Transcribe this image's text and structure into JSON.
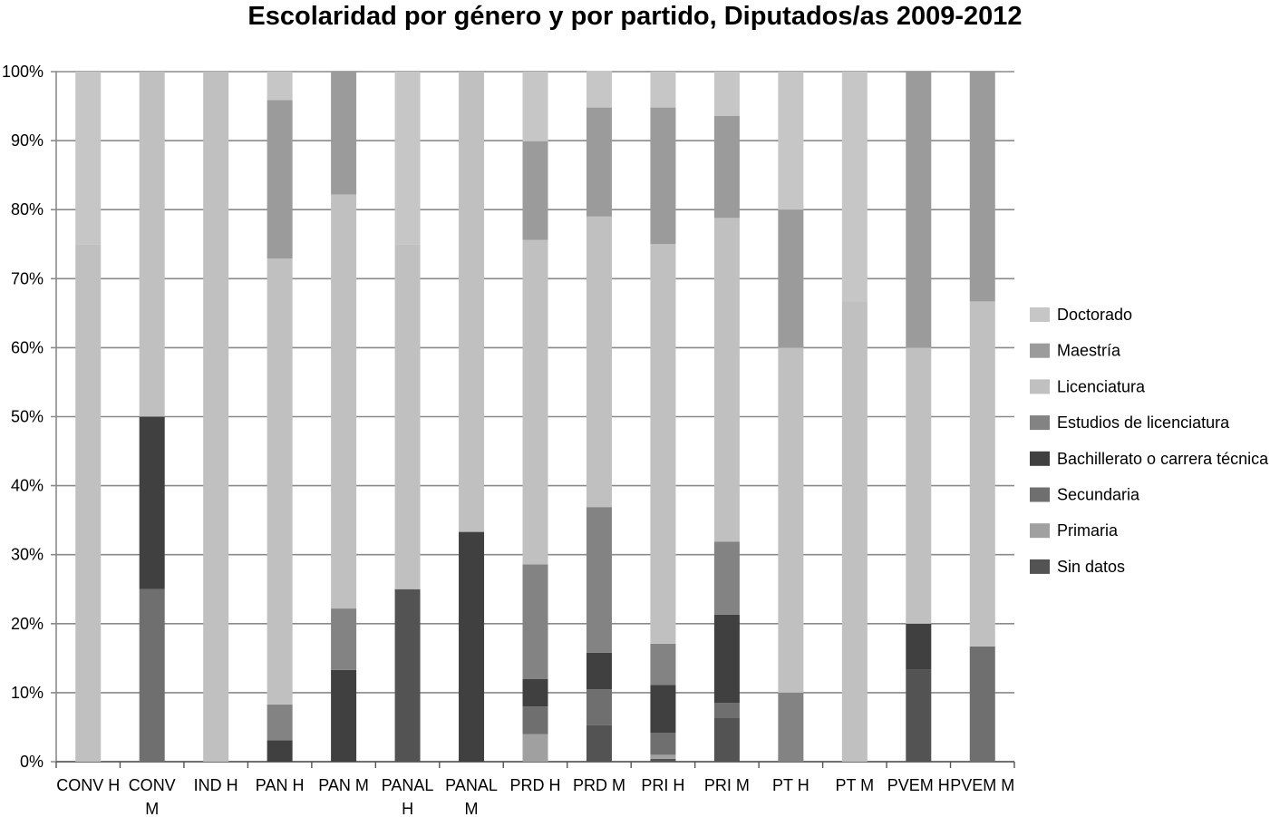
{
  "chart_data": {
    "type": "bar",
    "stacked": "percent",
    "title": "Escolaridad por género y por partido, Diputados/as 2009-2012",
    "xlabel": "",
    "ylabel": "",
    "ylim": [
      0,
      100
    ],
    "yticks": [
      "0%",
      "10%",
      "20%",
      "30%",
      "40%",
      "50%",
      "60%",
      "70%",
      "80%",
      "90%",
      "100%"
    ],
    "grid": true,
    "legend_position": "right",
    "categories": [
      [
        "CONV H"
      ],
      [
        "CONV",
        "M"
      ],
      [
        "IND H"
      ],
      [
        "PAN H"
      ],
      [
        "PAN M"
      ],
      [
        "PANAL",
        "H"
      ],
      [
        "PANAL",
        "M"
      ],
      [
        "PRD H"
      ],
      [
        "PRD M"
      ],
      [
        "PRI H"
      ],
      [
        "PRI M"
      ],
      [
        "PT H"
      ],
      [
        "PT M"
      ],
      [
        "PVEM H"
      ],
      [
        "PVEM M"
      ]
    ],
    "series": [
      {
        "name": "Sin datos",
        "color": "#535353",
        "values": [
          0,
          0,
          0,
          0,
          0,
          25,
          0,
          0,
          5.3,
          0.4,
          6.4,
          0,
          0,
          13.3,
          0
        ]
      },
      {
        "name": "Primaria",
        "color": "#a0a0a0",
        "values": [
          0,
          0,
          0,
          0,
          0,
          0,
          0,
          4,
          0,
          0.6,
          0,
          0,
          0,
          0,
          0
        ]
      },
      {
        "name": "Secundaria",
        "color": "#6f6f6f",
        "values": [
          0,
          25,
          0,
          0,
          0,
          0,
          0,
          4,
          5.2,
          3.2,
          2.1,
          0,
          0,
          0,
          16.7
        ]
      },
      {
        "name": "Bachillerato o carrera técnica",
        "color": "#404040",
        "values": [
          0,
          25,
          0,
          3.1,
          13.3,
          0,
          33.3,
          4,
          5.3,
          6.9,
          12.8,
          0,
          0,
          6.7,
          0
        ]
      },
      {
        "name": "Estudios de licenciatura",
        "color": "#838383",
        "values": [
          0,
          0,
          0,
          5.2,
          8.9,
          0,
          0,
          16.6,
          21.1,
          6,
          10.6,
          10,
          0,
          0,
          0
        ]
      },
      {
        "name": "Licenciatura",
        "color": "#c0c0c0",
        "values": [
          75,
          50,
          100,
          64.6,
          60,
          50,
          66.7,
          47,
          42.1,
          57.9,
          46.9,
          50,
          66.7,
          40,
          50
        ]
      },
      {
        "name": "Maestría",
        "color": "#9b9b9b",
        "values": [
          0,
          0,
          0,
          23,
          17.8,
          0,
          0,
          14.3,
          15.8,
          19.8,
          14.8,
          20,
          0,
          40,
          33.3
        ]
      },
      {
        "name": "Doctorado",
        "color": "#c6c6c6",
        "values": [
          25,
          0,
          0,
          4.1,
          0,
          25,
          0,
          10.1,
          5.3,
          5.2,
          6.4,
          20,
          33.3,
          0,
          0
        ]
      }
    ]
  }
}
